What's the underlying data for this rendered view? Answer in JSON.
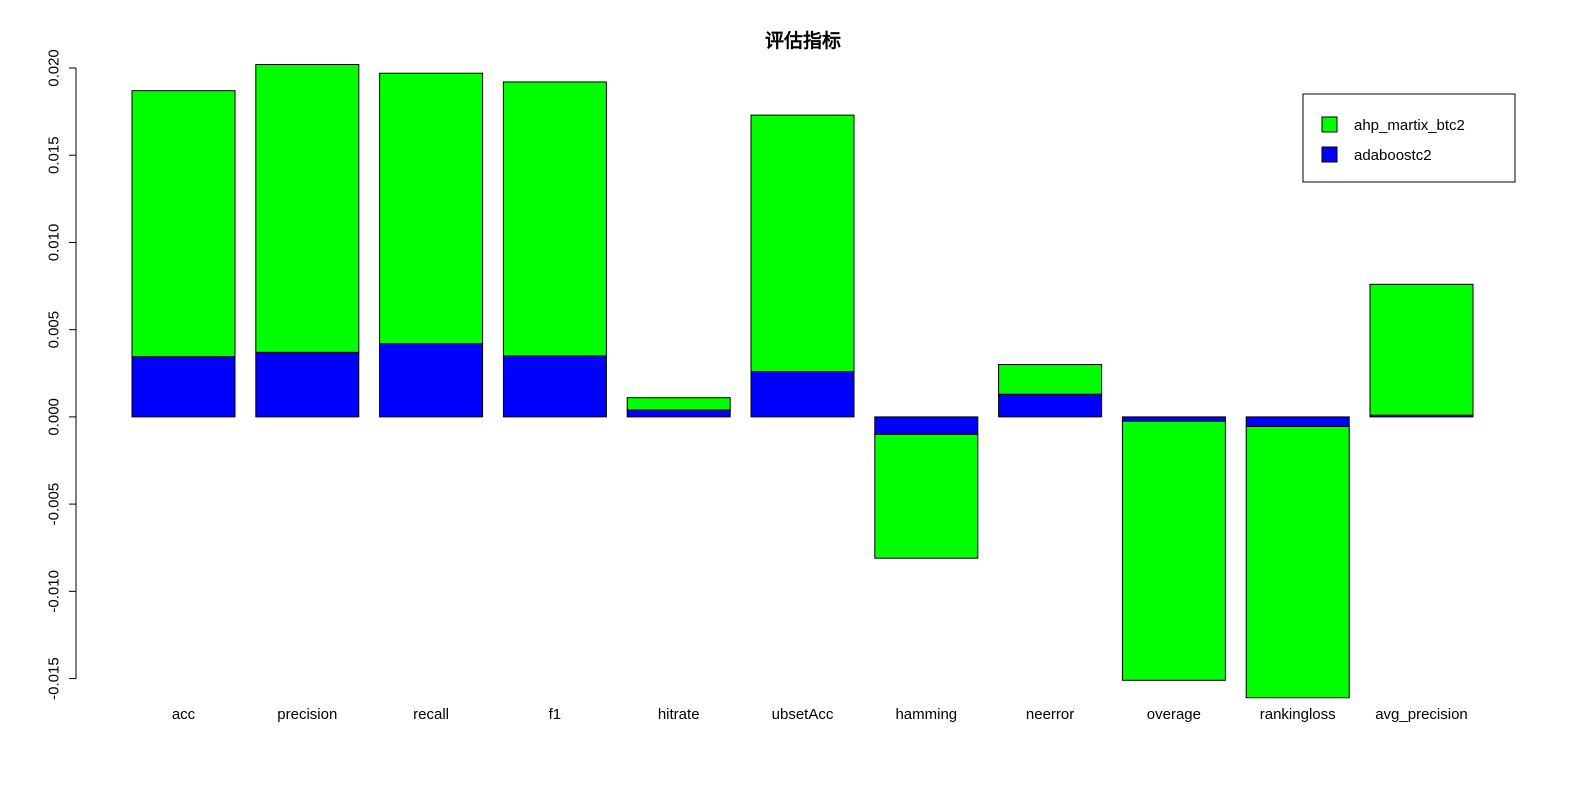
{
  "chart_data": {
    "type": "bar",
    "stacked": true,
    "title": "评估指标",
    "xlabel": "",
    "ylabel": "",
    "ylim": [
      -0.016,
      0.02
    ],
    "yticks": [
      -0.015,
      -0.01,
      -0.005,
      0,
      0.005,
      0.01,
      0.015,
      0.02
    ],
    "ytick_labels": [
      "-0.015",
      "-0.010",
      "-0.005",
      "0.000",
      "0.005",
      "0.010",
      "0.015",
      "0.020"
    ],
    "categories": [
      "acc",
      "precision",
      "recall",
      "f1",
      "hitrate",
      "ubsetAcc",
      "hamming",
      "neerror",
      "overage",
      "rankingloss",
      "avg_precision"
    ],
    "series": [
      {
        "name": "adaboostc2",
        "color": "#0000ff",
        "values": [
          0.00345,
          0.0037,
          0.0042,
          0.0035,
          0.0004,
          0.0026,
          -0.001,
          0.0013,
          -0.00025,
          -0.00055,
          0.0001
        ]
      },
      {
        "name": "ahp_martix_btc2",
        "color": "#00ff00",
        "values": [
          0.01525,
          0.0165,
          0.0155,
          0.0157,
          0.0007,
          0.0147,
          -0.0071,
          0.0017,
          -0.01485,
          -0.01555,
          0.0075
        ]
      }
    ],
    "legend": {
      "position": "top-right",
      "entries": [
        "ahp_martix_btc2",
        "adaboostc2"
      ]
    },
    "grid": false
  }
}
